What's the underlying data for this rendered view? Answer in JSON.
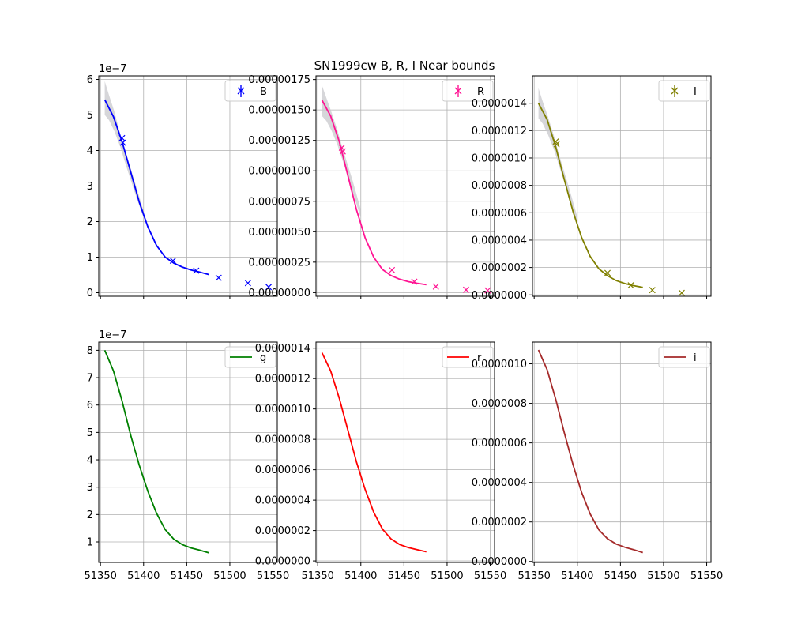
{
  "figure_title": "SN1999cw  B, R, I Near bounds",
  "colors": {
    "grid": "#b0b0b0",
    "band": "#c8c8cc",
    "axis": "#000000"
  },
  "chart_data": [
    {
      "type": "line",
      "panel": "B",
      "legend": "B",
      "legend_kind": "errorbar",
      "color": "#0000ff",
      "offset_label": "1e−7",
      "xlim": [
        51348,
        51555
      ],
      "ylim": [
        -0.1,
        6.1
      ],
      "xticks": [
        51350,
        51400,
        51450,
        51500,
        51550
      ],
      "xtick_labels": [
        "",
        "",
        "",
        "",
        ""
      ],
      "yticks": [
        0,
        1,
        2,
        3,
        4,
        5,
        6
      ],
      "ytick_labels": [
        "0",
        "1",
        "2",
        "3",
        "4",
        "5",
        "6"
      ],
      "curve": {
        "x": [
          51355,
          51365,
          51375,
          51385,
          51395,
          51405,
          51415,
          51425,
          51435,
          51445,
          51455,
          51465,
          51476
        ],
        "y": [
          5.43,
          4.95,
          4.25,
          3.4,
          2.55,
          1.85,
          1.33,
          1.0,
          0.83,
          0.72,
          0.64,
          0.58,
          0.51
        ]
      },
      "band": {
        "x": [
          51355,
          51360,
          51366,
          51373,
          51380,
          51390,
          51400
        ],
        "upper": [
          5.95,
          5.55,
          5.1,
          4.45,
          3.9,
          3.1,
          2.3
        ],
        "lower": [
          5.0,
          4.85,
          4.55,
          4.1,
          3.55,
          2.8,
          2.1
        ]
      },
      "points": {
        "x": [
          51375,
          51376,
          51434,
          51461,
          51487,
          51521,
          51545
        ],
        "y": [
          4.35,
          4.22,
          0.9,
          0.62,
          0.42,
          0.27,
          0.16
        ]
      }
    },
    {
      "type": "line",
      "panel": "R",
      "legend": "R",
      "legend_kind": "errorbar",
      "color": "#ff1493",
      "offset_label": "",
      "xlim": [
        51348,
        51555
      ],
      "ylim": [
        -3e-08,
        1.78e-06
      ],
      "xticks": [
        51350,
        51400,
        51450,
        51500,
        51550
      ],
      "xtick_labels": [
        "",
        "",
        "",
        "",
        ""
      ],
      "yticks": [
        0,
        2.5e-07,
        5e-07,
        7.5e-07,
        1e-06,
        1.25e-06,
        1.5e-06,
        1.75e-06
      ],
      "ytick_labels": [
        "0.00000000",
        "0.00000025",
        "0.00000050",
        "0.00000075",
        "0.00000100",
        "0.00000125",
        "0.00000150",
        "0.00000175"
      ],
      "curve": {
        "x": [
          51355,
          51365,
          51375,
          51385,
          51395,
          51405,
          51415,
          51425,
          51435,
          51445,
          51455,
          51465,
          51476
        ],
        "y": [
          1.58e-06,
          1.45e-06,
          1.24e-06,
          9.6e-07,
          6.8e-07,
          4.5e-07,
          2.9e-07,
          1.9e-07,
          1.4e-07,
          1.1e-07,
          9e-08,
          7.7e-08,
          6.5e-08
        ]
      },
      "band": {
        "x": [
          51355,
          51360,
          51366,
          51373,
          51380,
          51390,
          51400
        ],
        "upper": [
          1.7e-06,
          1.6e-06,
          1.48e-06,
          1.33e-06,
          1.16e-06,
          9.3e-07,
          6.8e-07
        ],
        "lower": [
          1.45e-06,
          1.41e-06,
          1.33e-06,
          1.21e-06,
          1.06e-06,
          8.4e-07,
          6.1e-07
        ]
      },
      "points": {
        "x": [
          51378,
          51379,
          51436,
          51462,
          51487,
          51522,
          51547
        ],
        "y": [
          1.19e-06,
          1.16e-06,
          1.85e-07,
          9e-08,
          5e-08,
          2.3e-08,
          1.8e-08
        ]
      }
    },
    {
      "type": "line",
      "panel": "I",
      "legend": "I",
      "legend_kind": "errorbar",
      "color": "#808000",
      "offset_label": "",
      "xlim": [
        51348,
        51555
      ],
      "ylim": [
        -1e-08,
        1.6e-06
      ],
      "xticks": [
        51350,
        51400,
        51450,
        51500,
        51550
      ],
      "xtick_labels": [
        "",
        "",
        "",
        "",
        ""
      ],
      "yticks": [
        0,
        2e-07,
        4e-07,
        6e-07,
        8e-07,
        1e-06,
        1.2e-06,
        1.4e-06
      ],
      "ytick_labels": [
        "0.0000000",
        "0.0000002",
        "0.0000004",
        "0.0000006",
        "0.0000008",
        "0.0000010",
        "0.0000012",
        "0.0000014"
      ],
      "curve": {
        "x": [
          51355,
          51365,
          51375,
          51385,
          51395,
          51405,
          51415,
          51425,
          51435,
          51445,
          51455,
          51465,
          51476
        ],
        "y": [
          1.4e-06,
          1.28e-06,
          1.08e-06,
          8.4e-07,
          6.1e-07,
          4.2e-07,
          2.8e-07,
          1.9e-07,
          1.4e-07,
          1.05e-07,
          8.3e-08,
          6.8e-08,
          5.5e-08
        ]
      },
      "band": {
        "x": [
          51355,
          51360,
          51366,
          51373,
          51380,
          51390,
          51400
        ],
        "upper": [
          1.51e-06,
          1.41e-06,
          1.3e-06,
          1.16e-06,
          1e-06,
          7.9e-07,
          5.7e-07
        ],
        "lower": [
          1.29e-06,
          1.25e-06,
          1.17e-06,
          1.06e-06,
          9.2e-07,
          7.3e-07,
          5.2e-07
        ]
      },
      "points": {
        "x": [
          51375,
          51376,
          51435,
          51462,
          51487,
          51521
        ],
        "y": [
          1.12e-06,
          1.1e-06,
          1.6e-07,
          7e-08,
          3.5e-08,
          1.5e-08
        ]
      }
    },
    {
      "type": "line",
      "panel": "g",
      "legend": "g",
      "legend_kind": "line",
      "color": "#008000",
      "offset_label": "1e−7",
      "xlim": [
        51348,
        51555
      ],
      "ylim": [
        0.25,
        8.3
      ],
      "xticks": [
        51350,
        51400,
        51450,
        51500,
        51550
      ],
      "xtick_labels": [
        "51350",
        "51400",
        "51450",
        "51500",
        "51550"
      ],
      "yticks": [
        1,
        2,
        3,
        4,
        5,
        6,
        7,
        8
      ],
      "ytick_labels": [
        "1",
        "2",
        "3",
        "4",
        "5",
        "6",
        "7",
        "8"
      ],
      "curve": {
        "x": [
          51355,
          51365,
          51375,
          51385,
          51395,
          51405,
          51415,
          51425,
          51435,
          51445,
          51455,
          51465,
          51476
        ],
        "y": [
          8.0,
          7.25,
          6.15,
          4.9,
          3.8,
          2.85,
          2.05,
          1.45,
          1.1,
          0.9,
          0.78,
          0.7,
          0.6
        ]
      },
      "band": null,
      "points": null
    },
    {
      "type": "line",
      "panel": "r",
      "legend": "r",
      "legend_kind": "line",
      "color": "#ff0000",
      "offset_label": "",
      "xlim": [
        51348,
        51555
      ],
      "ylim": [
        -1e-08,
        1.44e-06
      ],
      "xticks": [
        51350,
        51400,
        51450,
        51500,
        51550
      ],
      "xtick_labels": [
        "51350",
        "51400",
        "51450",
        "51500",
        "51550"
      ],
      "yticks": [
        0,
        2e-07,
        4e-07,
        6e-07,
        8e-07,
        1e-06,
        1.2e-06,
        1.4e-06
      ],
      "ytick_labels": [
        "0.0000000",
        "0.0000002",
        "0.0000004",
        "0.0000006",
        "0.0000008",
        "0.0000010",
        "0.0000012",
        "0.0000014"
      ],
      "curve": {
        "x": [
          51355,
          51365,
          51375,
          51385,
          51395,
          51405,
          51415,
          51425,
          51435,
          51445,
          51455,
          51465,
          51476
        ],
        "y": [
          1.37e-06,
          1.25e-06,
          1.07e-06,
          8.6e-07,
          6.5e-07,
          4.7e-07,
          3.2e-07,
          2.1e-07,
          1.45e-07,
          1.08e-07,
          8.8e-08,
          7.4e-08,
          6e-08
        ]
      },
      "band": null,
      "points": null
    },
    {
      "type": "line",
      "panel": "i",
      "legend": "i",
      "legend_kind": "line",
      "color": "#a52a2a",
      "offset_label": "",
      "xlim": [
        51348,
        51555
      ],
      "ylim": [
        -5e-09,
        1.11e-06
      ],
      "xticks": [
        51350,
        51400,
        51450,
        51500,
        51550
      ],
      "xtick_labels": [
        "51350",
        "51400",
        "51450",
        "51500",
        "51550"
      ],
      "yticks": [
        0,
        2e-07,
        4e-07,
        6e-07,
        8e-07,
        1e-06
      ],
      "ytick_labels": [
        "0.0000000",
        "0.0000002",
        "0.0000004",
        "0.0000006",
        "0.0000008",
        "0.0000010"
      ],
      "curve": {
        "x": [
          51355,
          51365,
          51375,
          51385,
          51395,
          51405,
          51415,
          51425,
          51435,
          51445,
          51455,
          51465,
          51476
        ],
        "y": [
          1.07e-06,
          9.7e-07,
          8.2e-07,
          6.5e-07,
          4.9e-07,
          3.5e-07,
          2.4e-07,
          1.6e-07,
          1.15e-07,
          8.8e-08,
          7.2e-08,
          6e-08,
          4.5e-08
        ]
      },
      "band": null,
      "points": null
    }
  ]
}
